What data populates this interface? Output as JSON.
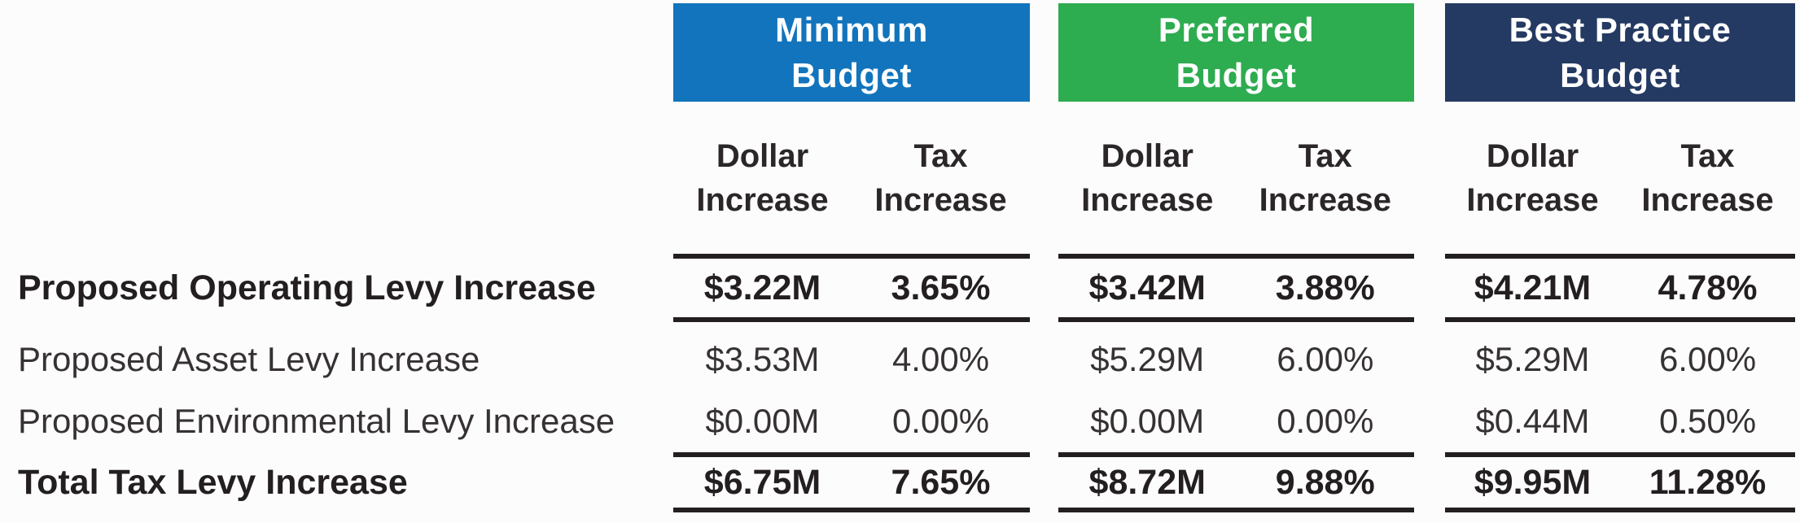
{
  "page": {
    "background": "#FCFCFC",
    "text_color": "#231F20"
  },
  "table": {
    "groups": [
      {
        "title": "Minimum Budget",
        "title_line1": "Minimum",
        "title_line2": "Budget",
        "color": "#1274BC"
      },
      {
        "title": "Preferred Budget",
        "title_line1": "Preferred",
        "title_line2": "Budget",
        "color": "#2EAC50"
      },
      {
        "title": "Best Practice Budget",
        "title_line1": "Best Practice",
        "title_line2": "Budget",
        "color": "#243A63"
      }
    ],
    "sub_headers": [
      {
        "line1": "Dollar",
        "line2": "Increase"
      },
      {
        "line1": "Tax",
        "line2": "Increase"
      }
    ]
  },
  "chart_data": {
    "type": "table",
    "column_groups": [
      "Minimum Budget",
      "Preferred Budget",
      "Best Practice Budget"
    ],
    "sub_columns": [
      "Dollar Increase",
      "Tax Increase"
    ],
    "rows": [
      {
        "label": "Proposed Operating Levy Increase",
        "emphasis": true,
        "cells": [
          "$3.22M",
          "3.65%",
          "$3.42M",
          "3.88%",
          "$4.21M",
          "4.78%"
        ]
      },
      {
        "label": "Proposed Asset Levy Increase",
        "emphasis": false,
        "cells": [
          "$3.53M",
          "4.00%",
          "$5.29M",
          "6.00%",
          "$5.29M",
          "6.00%"
        ]
      },
      {
        "label": "Proposed Environmental Levy Increase",
        "emphasis": false,
        "cells": [
          "$0.00M",
          "0.00%",
          "$0.00M",
          "0.00%",
          "$0.44M",
          "0.50%"
        ]
      },
      {
        "label": "Total Tax Levy Increase",
        "emphasis": true,
        "cells": [
          "$6.75M",
          "7.65%",
          "$8.72M",
          "9.88%",
          "$9.95M",
          "11.28%"
        ]
      }
    ],
    "numeric": {
      "dollar_increase_millions": {
        "Minimum Budget": {
          "operating": 3.22,
          "asset": 3.53,
          "environmental": 0.0,
          "total": 6.75
        },
        "Preferred Budget": {
          "operating": 3.42,
          "asset": 5.29,
          "environmental": 0.0,
          "total": 8.72
        },
        "Best Practice Budget": {
          "operating": 4.21,
          "asset": 5.29,
          "environmental": 0.44,
          "total": 9.95
        }
      },
      "tax_increase_percent": {
        "Minimum Budget": {
          "operating": 3.65,
          "asset": 4.0,
          "environmental": 0.0,
          "total": 7.65
        },
        "Preferred Budget": {
          "operating": 3.88,
          "asset": 6.0,
          "environmental": 0.0,
          "total": 9.88
        },
        "Best Practice Budget": {
          "operating": 4.78,
          "asset": 6.0,
          "environmental": 0.5,
          "total": 11.28
        }
      }
    }
  }
}
